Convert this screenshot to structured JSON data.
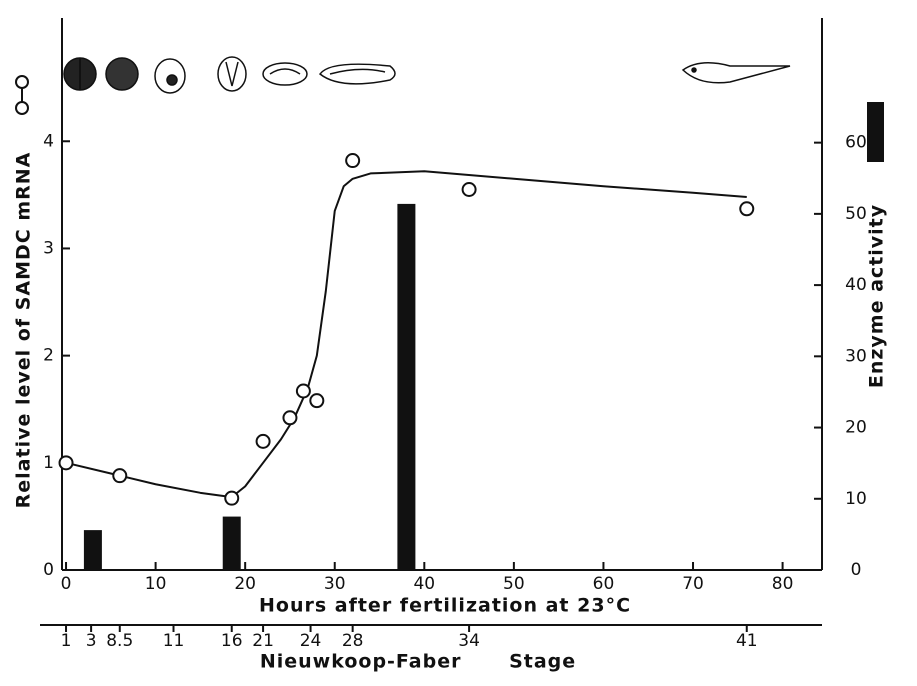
{
  "chart_data": {
    "type": "combo",
    "xlabel": "Hours after fertilization at 23°C",
    "ylabel": "Relative level of SAMDC mRNA",
    "y2label": "Enzyme activity",
    "stage_label": "Nieuwkoop-Faber Stage",
    "xlim": [
      -0.45,
      84.4
    ],
    "ylim": [
      0,
      5.15
    ],
    "y2lim": [
      0,
      77.5
    ],
    "xticks": [
      0,
      10,
      20,
      30,
      40,
      50,
      60,
      70,
      80
    ],
    "yticks": [
      0,
      1,
      2,
      3,
      4
    ],
    "y2ticks": [
      0,
      10,
      20,
      30,
      40,
      50,
      60
    ],
    "stage_ticks": [
      {
        "value": 0,
        "label": "1"
      },
      {
        "value": 2.8,
        "label": "3"
      },
      {
        "value": 6,
        "label": "8.5"
      },
      {
        "value": 12,
        "label": "11"
      },
      {
        "value": 18.5,
        "label": "16"
      },
      {
        "value": 22,
        "label": "21"
      },
      {
        "value": 27.3,
        "label": "24"
      },
      {
        "value": 32,
        "label": "28"
      },
      {
        "value": 45,
        "label": "34"
      },
      {
        "value": 76,
        "label": "41"
      }
    ],
    "series": [
      {
        "type": "scatter",
        "color": "#111111",
        "x": [
          0,
          6,
          18.5,
          22,
          25,
          26.5,
          28,
          32,
          45,
          76
        ],
        "values": [
          1.0,
          0.88,
          0.67,
          1.2,
          1.42,
          1.67,
          1.58,
          3.82,
          3.55,
          3.37
        ]
      },
      {
        "type": "line",
        "color": "#111111",
        "x": [
          0,
          5,
          10,
          15,
          18.5,
          20,
          22,
          24,
          25.5,
          27,
          28,
          29,
          30,
          31,
          32,
          34,
          40,
          50,
          60,
          70,
          76
        ],
        "values": [
          1.0,
          0.9,
          0.8,
          0.72,
          0.68,
          0.78,
          1.0,
          1.22,
          1.42,
          1.7,
          2.0,
          2.6,
          3.35,
          3.58,
          3.65,
          3.7,
          3.72,
          3.65,
          3.58,
          3.52,
          3.48
        ]
      },
      {
        "type": "bar",
        "axis": "y2",
        "color": "#111111",
        "x": [
          3,
          18.5,
          38
        ],
        "values": [
          5.6,
          7.5,
          51.4
        ]
      }
    ]
  }
}
